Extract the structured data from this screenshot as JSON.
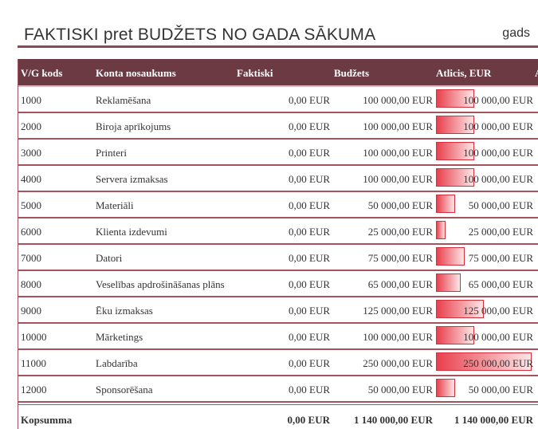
{
  "title": "FAKTISKI pret BUDŽETS NO GADA SĀKUMA",
  "period_label": "gads",
  "columns": {
    "code": "V/G kods",
    "name": "Konta nosaukums",
    "actual": "Faktiski",
    "budget": "Budžets",
    "remaining": "Atlicis, EUR",
    "overflow": "A"
  },
  "rows": [
    {
      "code": "1000",
      "name": "Reklamēšana",
      "actual": "0,00 EUR",
      "budget": "100 000,00 EUR",
      "remaining": "100 000,00 EUR",
      "ratio": 0.4
    },
    {
      "code": "2000",
      "name": "Biroja aprīkojums",
      "actual": "0,00 EUR",
      "budget": "100 000,00 EUR",
      "remaining": "100 000,00 EUR",
      "ratio": 0.4
    },
    {
      "code": "3000",
      "name": "Printeri",
      "actual": "0,00 EUR",
      "budget": "100 000,00 EUR",
      "remaining": "100 000,00 EUR",
      "ratio": 0.4
    },
    {
      "code": "4000",
      "name": "Servera izmaksas",
      "actual": "0,00 EUR",
      "budget": "100 000,00 EUR",
      "remaining": "100 000,00 EUR",
      "ratio": 0.4
    },
    {
      "code": "5000",
      "name": "Materiāli",
      "actual": "0,00 EUR",
      "budget": "50 000,00 EUR",
      "remaining": "50 000,00 EUR",
      "ratio": 0.2
    },
    {
      "code": "6000",
      "name": "Klienta izdevumi",
      "actual": "0,00 EUR",
      "budget": "25 000,00 EUR",
      "remaining": "25 000,00 EUR",
      "ratio": 0.1
    },
    {
      "code": "7000",
      "name": "Datori",
      "actual": "0,00 EUR",
      "budget": "75 000,00 EUR",
      "remaining": "75 000,00 EUR",
      "ratio": 0.3
    },
    {
      "code": "8000",
      "name": "Veselības apdrošināšanas plāns",
      "actual": "0,00 EUR",
      "budget": "65 000,00 EUR",
      "remaining": "65 000,00 EUR",
      "ratio": 0.26
    },
    {
      "code": "9000",
      "name": "Ēku izmaksas",
      "actual": "0,00 EUR",
      "budget": "125 000,00 EUR",
      "remaining": "125 000,00 EUR",
      "ratio": 0.5
    },
    {
      "code": "10000",
      "name": "Mārketings",
      "actual": "0,00 EUR",
      "budget": "100 000,00 EUR",
      "remaining": "100 000,00 EUR",
      "ratio": 0.4
    },
    {
      "code": "11000",
      "name": "Labdarība",
      "actual": "0,00 EUR",
      "budget": "250 000,00 EUR",
      "remaining": "250 000,00 EUR",
      "ratio": 1.0
    },
    {
      "code": "12000",
      "name": "Sponsorēšana",
      "actual": "0,00 EUR",
      "budget": "50 000,00 EUR",
      "remaining": "50 000,00 EUR",
      "ratio": 0.2
    }
  ],
  "totals": {
    "label": "Kopsumma",
    "actual": "0,00 EUR",
    "budget": "1 140 000,00 EUR",
    "remaining": "1 140 000,00 EUR"
  },
  "colors": {
    "header_bg": "#6b3a42",
    "rule": "#a8525d",
    "databar": "#e8404d"
  }
}
